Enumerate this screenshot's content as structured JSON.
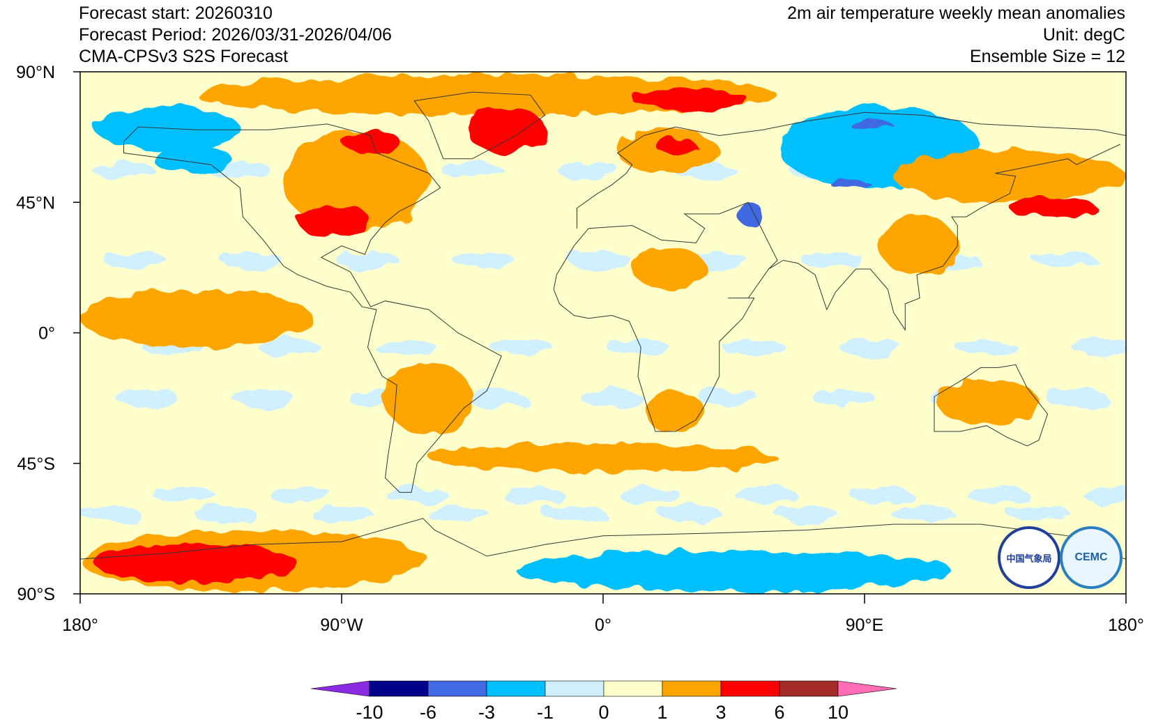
{
  "header": {
    "left": {
      "forecast_start": "Forecast start: 20260310",
      "forecast_period": "Forecast Period: 2026/03/31-2026/04/06",
      "model": "CMA-CPSv3 S2S Forecast"
    },
    "right": {
      "variable": "2m air temperature weekly mean anomalies",
      "unit": "Unit: degC",
      "ensemble": "Ensemble Size = 12"
    }
  },
  "map": {
    "projection": "cylindrical equidistant",
    "lon_range": [
      -180,
      180
    ],
    "lat_range": [
      -90,
      90
    ],
    "lat_ticks": [
      {
        "value": 90,
        "label": "90°N"
      },
      {
        "value": 45,
        "label": "45°N"
      },
      {
        "value": 0,
        "label": "0°"
      },
      {
        "value": -45,
        "label": "45°S"
      },
      {
        "value": -90,
        "label": "90°S"
      }
    ],
    "lon_ticks": [
      {
        "value": -180,
        "label": "180°"
      },
      {
        "value": -90,
        "label": "90°W"
      },
      {
        "value": 0,
        "label": "0°"
      },
      {
        "value": 90,
        "label": "90°E"
      },
      {
        "value": 180,
        "label": "180°"
      }
    ],
    "background_class_color": "#ffffcc",
    "anomaly_regions": [
      {
        "region": "Arctic band",
        "lon": [
          -140,
          60
        ],
        "lat": [
          75,
          89
        ],
        "class": "1 to 3"
      },
      {
        "region": "Greenland",
        "lon": [
          -47,
          -20
        ],
        "lat": [
          62,
          78
        ],
        "class": "3 to 6"
      },
      {
        "region": "Barents / Svalbard",
        "lon": [
          10,
          50
        ],
        "lat": [
          77,
          84
        ],
        "class": "3 to 6"
      },
      {
        "region": "Scandinavia",
        "lon": [
          5,
          40
        ],
        "lat": [
          55,
          70
        ],
        "class": "1 to 3"
      },
      {
        "region": "Finland",
        "lon": [
          18,
          32
        ],
        "lat": [
          62,
          67
        ],
        "class": "3 to 6"
      },
      {
        "region": "Eastern North America",
        "lon": [
          -110,
          -60
        ],
        "lat": [
          35,
          70
        ],
        "class": "1 to 3"
      },
      {
        "region": "US Midwest",
        "lon": [
          -105,
          -80
        ],
        "lat": [
          33,
          44
        ],
        "class": "3 to 6"
      },
      {
        "region": "Hudson Bay",
        "lon": [
          -90,
          -70
        ],
        "lat": [
          62,
          70
        ],
        "class": "3 to 6"
      },
      {
        "region": "Alaska / NW Canada",
        "lon": [
          -175,
          -125
        ],
        "lat": [
          63,
          78
        ],
        "class": "-3 to -1"
      },
      {
        "region": "NE Pacific",
        "lon": [
          -155,
          -128
        ],
        "lat": [
          55,
          65
        ],
        "class": "-3 to -1"
      },
      {
        "region": "Siberia",
        "lon": [
          60,
          130
        ],
        "lat": [
          50,
          78
        ],
        "class": "-3 to -1"
      },
      {
        "region": "West Siberia core",
        "lon": [
          85,
          100
        ],
        "lat": [
          70,
          73
        ],
        "class": "-6 to -3"
      },
      {
        "region": "Central Asia core",
        "lon": [
          78,
          92
        ],
        "lat": [
          50,
          53
        ],
        "class": "-6 to -3"
      },
      {
        "region": "Caspian",
        "lon": [
          46,
          55
        ],
        "lat": [
          37,
          45
        ],
        "class": "-6 to -3"
      },
      {
        "region": "Northeast Asia",
        "lon": [
          100,
          180
        ],
        "lat": [
          45,
          63
        ],
        "class": "1 to 3"
      },
      {
        "region": "North Pacific line",
        "lon": [
          140,
          170
        ],
        "lat": [
          40,
          46
        ],
        "class": "3 to 6"
      },
      {
        "region": "China",
        "lon": [
          95,
          122
        ],
        "lat": [
          20,
          40
        ],
        "class": "1 to 3"
      },
      {
        "region": "Sahara",
        "lon": [
          10,
          35
        ],
        "lat": [
          15,
          30
        ],
        "class": "1 to 3"
      },
      {
        "region": "Southern Africa",
        "lon": [
          15,
          35
        ],
        "lat": [
          -35,
          -20
        ],
        "class": "1 to 3"
      },
      {
        "region": "Australia",
        "lon": [
          115,
          150
        ],
        "lat": [
          -32,
          -16
        ],
        "class": "1 to 3"
      },
      {
        "region": "Tropical East Pacific",
        "lon": [
          -180,
          -100
        ],
        "lat": [
          -5,
          15
        ],
        "class": "1 to 3"
      },
      {
        "region": "South America",
        "lon": [
          -75,
          -45
        ],
        "lat": [
          -35,
          -10
        ],
        "class": "1 to 3"
      },
      {
        "region": "Southern Ocean streaks",
        "lon": [
          -60,
          60
        ],
        "lat": [
          -48,
          -38
        ],
        "class": "1 to 3"
      },
      {
        "region": "West Antarctica",
        "lon": [
          -180,
          -60
        ],
        "lat": [
          -89,
          -68
        ],
        "class": "1 to 3"
      },
      {
        "region": "Ross / Marie Byrd",
        "lon": [
          -175,
          -105
        ],
        "lat": [
          -86,
          -73
        ],
        "class": "3 to 6"
      },
      {
        "region": "East Antarctica",
        "lon": [
          -30,
          120
        ],
        "lat": [
          -89,
          -75
        ],
        "class": "-3 to -1"
      }
    ]
  },
  "colorbar": {
    "levels": [
      "-10",
      "-6",
      "-3",
      "-1",
      "0",
      "1",
      "3",
      "6",
      "10"
    ],
    "colors": [
      "#8a2be2",
      "#00008b",
      "#4169e1",
      "#00bfff",
      "#d0f0ff",
      "#ffffcc",
      "#ffa500",
      "#ff0000",
      "#a52a2a",
      "#ff6eb4"
    ]
  },
  "logos": {
    "cma": {
      "text": "中国气象局",
      "icon": "cma-logo-icon"
    },
    "cemc": {
      "text": "CEMC",
      "icon": "cemc-logo-icon"
    }
  }
}
